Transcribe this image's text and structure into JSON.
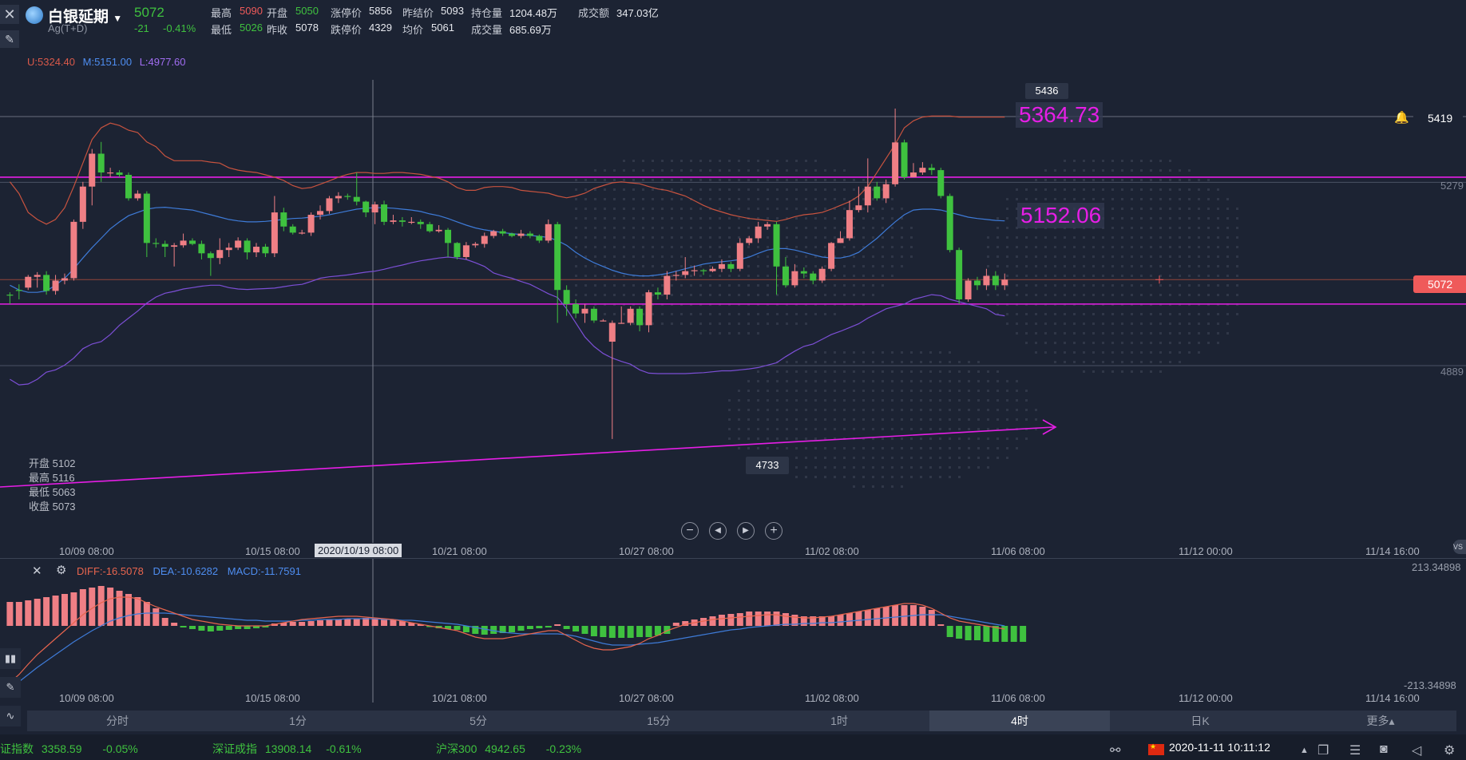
{
  "header": {
    "title": "白银延期",
    "subtitle": "Ag(T+D)",
    "price": "5072",
    "change": "-21",
    "change_pct": "-0.41%",
    "stats_row1": [
      {
        "label": "最高",
        "value": "5090",
        "color": "red"
      },
      {
        "label": "开盘",
        "value": "5050",
        "color": "green"
      },
      {
        "label": "涨停价",
        "value": "5856",
        "color": "plain"
      },
      {
        "label": "昨结价",
        "value": "5093",
        "color": "plain"
      },
      {
        "label": "持仓量",
        "value": "1204.48万",
        "color": "plain"
      },
      {
        "label": "成交额",
        "value": "347.03亿",
        "color": "plain"
      }
    ],
    "stats_row2": [
      {
        "label": "最低",
        "value": "5026",
        "color": "green"
      },
      {
        "label": "昨收",
        "value": "5078",
        "color": "plain"
      },
      {
        "label": "跌停价",
        "value": "4329",
        "color": "plain"
      },
      {
        "label": "均价",
        "value": "5061",
        "color": "plain"
      },
      {
        "label": "成交量",
        "value": "685.69万",
        "color": "plain"
      }
    ]
  },
  "boll": {
    "u": "U:5324.40",
    "m": "M:5151.00",
    "l": "L:4977.60"
  },
  "ohlc_box": {
    "open": "开盘 5102",
    "high": "最高 5116",
    "low": "最低 5063",
    "close": "收盘 5073"
  },
  "price_axis": {
    "p5419": "5419",
    "p5279": "5279",
    "p5072": "5072",
    "p4889": "4889"
  },
  "annotations": {
    "high_label": "5436",
    "low_label": "4733",
    "line1": "5364.73",
    "line2": "5152.06"
  },
  "time_axis": [
    "10/09 08:00",
    "10/15 08:00",
    "10/21 08:00",
    "10/27 08:00",
    "11/02 08:00",
    "11/06 08:00",
    "11/12 00:00",
    "11/14 16:00"
  ],
  "crosshair_time": "2020/10/19 08:00",
  "macd": {
    "diff": "DIFF:-16.5078",
    "dea": "DEA:-10.6282",
    "macd": "MACD:-11.7591",
    "axis_top": "213.34898",
    "axis_bottom": "-213.34898"
  },
  "timeframes": [
    "分时",
    "1分",
    "5分",
    "15分",
    "1时",
    "4时",
    "日K",
    "更多"
  ],
  "active_timeframe": "4时",
  "status_bar": {
    "t1_name": "证指数",
    "t1_value": "3358.59",
    "t1_pct": "-0.05%",
    "t2_name": "深证成指",
    "t2_value": "13908.14",
    "t2_pct": "-0.61%",
    "t3_name": "沪深300",
    "t3_value": "4942.65",
    "t3_pct": "-0.23%",
    "datetime": "2020-11-11 10:11:12"
  },
  "colors": {
    "bg": "#1c2333",
    "up": "#ef7f85",
    "down": "#3fc13f",
    "magenta": "#e61ee6",
    "mid": "#3e7bd8",
    "upper": "#c8533f",
    "lower": "#7c4fd6"
  },
  "chart_data": {
    "type": "candlestick",
    "candles": [
      [
        5040,
        5038,
        5020,
        5045
      ],
      [
        5050,
        5048,
        5030,
        5062
      ],
      [
        5055,
        5078,
        5050,
        5082
      ],
      [
        5078,
        5082,
        5055,
        5088
      ],
      [
        5082,
        5048,
        5040,
        5090
      ],
      [
        5048,
        5070,
        5040,
        5082
      ],
      [
        5070,
        5075,
        5062,
        5085
      ],
      [
        5075,
        5195,
        5070,
        5200
      ],
      [
        5195,
        5270,
        5180,
        5280
      ],
      [
        5270,
        5340,
        5230,
        5350
      ],
      [
        5340,
        5300,
        5280,
        5365
      ],
      [
        5300,
        5300,
        5290,
        5310
      ],
      [
        5300,
        5295,
        5290,
        5305
      ],
      [
        5295,
        5245,
        5240,
        5300
      ],
      [
        5245,
        5255,
        5240,
        5262
      ],
      [
        5255,
        5150,
        5120,
        5260
      ],
      [
        5150,
        5148,
        5140,
        5160
      ],
      [
        5148,
        5142,
        5120,
        5155
      ],
      [
        5142,
        5145,
        5100,
        5150
      ],
      [
        5145,
        5155,
        5140,
        5170
      ],
      [
        5155,
        5148,
        5145,
        5160
      ],
      [
        5148,
        5128,
        5115,
        5155
      ],
      [
        5128,
        5118,
        5080,
        5132
      ],
      [
        5118,
        5135,
        5105,
        5160
      ],
      [
        5135,
        5140,
        5120,
        5150
      ],
      [
        5140,
        5155,
        5135,
        5162
      ],
      [
        5155,
        5130,
        5115,
        5160
      ],
      [
        5130,
        5142,
        5120,
        5150
      ],
      [
        5142,
        5128,
        5120,
        5148
      ],
      [
        5128,
        5215,
        5120,
        5250
      ],
      [
        5215,
        5185,
        5175,
        5225
      ],
      [
        5185,
        5172,
        5168,
        5190
      ],
      [
        5172,
        5172,
        5168,
        5178
      ],
      [
        5172,
        5210,
        5165,
        5215
      ],
      [
        5210,
        5218,
        5200,
        5230
      ],
      [
        5218,
        5245,
        5212,
        5250
      ],
      [
        5245,
        5250,
        5235,
        5258
      ],
      [
        5250,
        5248,
        5242,
        5255
      ],
      [
        5248,
        5238,
        5230,
        5300
      ],
      [
        5238,
        5215,
        5205,
        5240
      ],
      [
        5215,
        5232,
        5190,
        5238
      ],
      [
        5232,
        5195,
        5188,
        5240
      ],
      [
        5195,
        5198,
        5190,
        5210
      ],
      [
        5198,
        5195,
        5185,
        5205
      ],
      [
        5195,
        5195,
        5190,
        5205
      ],
      [
        5195,
        5190,
        5180,
        5200
      ],
      [
        5190,
        5175,
        5172,
        5195
      ],
      [
        5175,
        5178,
        5172,
        5188
      ],
      [
        5178,
        5150,
        5120,
        5182
      ],
      [
        5150,
        5120,
        5115,
        5152
      ],
      [
        5120,
        5145,
        5115,
        5152
      ],
      [
        5145,
        5148,
        5140,
        5152
      ],
      [
        5148,
        5165,
        5140,
        5172
      ],
      [
        5165,
        5175,
        5160,
        5178
      ],
      [
        5175,
        5170,
        5165,
        5180
      ],
      [
        5170,
        5165,
        5162,
        5172
      ],
      [
        5165,
        5170,
        5160,
        5178
      ],
      [
        5170,
        5165,
        5160,
        5175
      ],
      [
        5165,
        5155,
        5150,
        5168
      ],
      [
        5155,
        5190,
        5150,
        5200
      ],
      [
        5190,
        5050,
        4980,
        5195
      ],
      [
        5050,
        5020,
        4995,
        5060
      ],
      [
        5020,
        5000,
        4990,
        5030
      ],
      [
        5000,
        5010,
        4980,
        5020
      ],
      [
        5010,
        4985,
        4980,
        5015
      ],
      [
        4985,
        4985,
        4983,
        4988
      ],
      [
        4940,
        4980,
        4733,
        4985
      ],
      [
        4980,
        4980,
        4978,
        5015
      ],
      [
        4980,
        5010,
        4975,
        5015
      ],
      [
        5010,
        4975,
        4962,
        5015
      ],
      [
        4975,
        5045,
        4960,
        5050
      ],
      [
        5045,
        5040,
        5030,
        5055
      ],
      [
        5040,
        5080,
        5030,
        5090
      ],
      [
        5080,
        5082,
        5070,
        5090
      ],
      [
        5082,
        5090,
        5075,
        5120
      ],
      [
        5090,
        5092,
        5080,
        5102
      ],
      [
        5092,
        5090,
        5082,
        5095
      ],
      [
        5090,
        5095,
        5088,
        5100
      ],
      [
        5095,
        5105,
        5088,
        5115
      ],
      [
        5105,
        5095,
        5088,
        5110
      ],
      [
        5095,
        5150,
        5090,
        5160
      ],
      [
        5150,
        5160,
        5145,
        5165
      ],
      [
        5160,
        5185,
        5150,
        5195
      ],
      [
        5185,
        5190,
        5178,
        5195
      ],
      [
        5190,
        5100,
        5040,
        5195
      ],
      [
        5100,
        5060,
        5055,
        5120
      ],
      [
        5060,
        5090,
        5055,
        5105
      ],
      [
        5090,
        5085,
        5075,
        5098
      ],
      [
        5085,
        5070,
        5062,
        5090
      ],
      [
        5070,
        5095,
        5065,
        5100
      ],
      [
        5095,
        5150,
        5090,
        5152
      ],
      [
        5150,
        5160,
        5150,
        5175
      ],
      [
        5160,
        5220,
        5155,
        5240
      ],
      [
        5220,
        5230,
        5215,
        5270
      ],
      [
        5230,
        5270,
        5215,
        5330
      ],
      [
        5270,
        5245,
        5240,
        5280
      ],
      [
        5245,
        5275,
        5235,
        5285
      ],
      [
        5275,
        5364,
        5270,
        5436
      ],
      [
        5364,
        5290,
        5285,
        5370
      ],
      [
        5290,
        5300,
        5290,
        5320
      ],
      [
        5300,
        5310,
        5295,
        5322
      ],
      [
        5310,
        5305,
        5295,
        5318
      ],
      [
        5305,
        5250,
        5245,
        5310
      ],
      [
        5250,
        5135,
        5130,
        5255
      ],
      [
        5135,
        5030,
        5020,
        5140
      ],
      [
        5030,
        5070,
        5025,
        5075
      ],
      [
        5070,
        5060,
        5050,
        5078
      ],
      [
        5060,
        5080,
        5050,
        5095
      ],
      [
        5080,
        5060,
        5050,
        5090
      ],
      [
        5060,
        5072,
        5050,
        5085
      ]
    ]
  }
}
